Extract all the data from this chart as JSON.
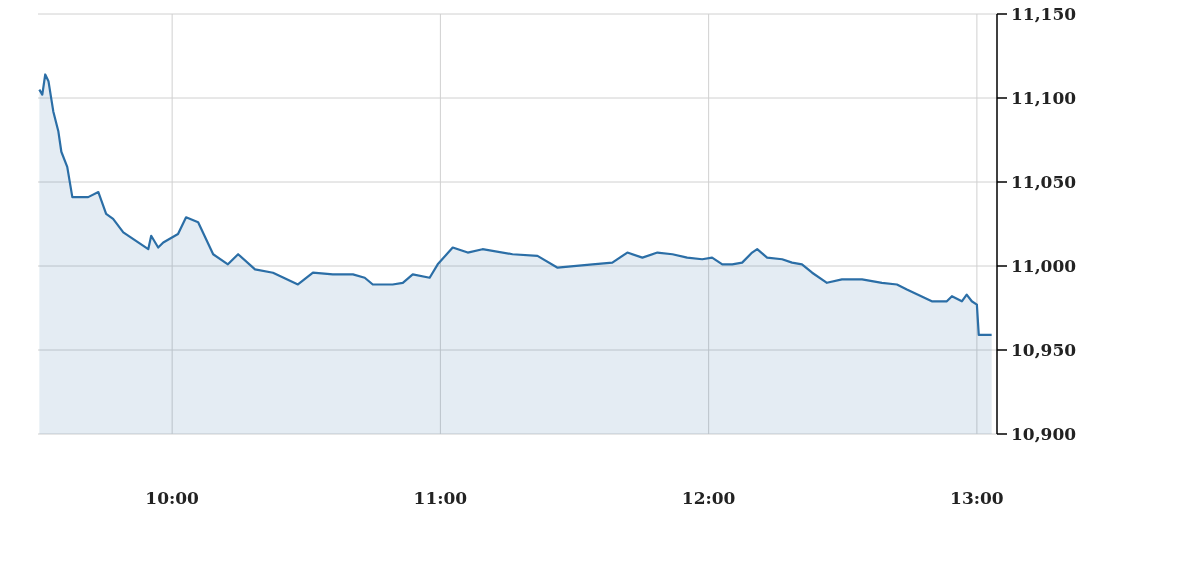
{
  "chart_data": {
    "type": "area",
    "x": [
      9.505,
      9.516,
      9.527,
      9.539,
      9.557,
      9.576,
      9.587,
      9.609,
      9.628,
      9.65,
      9.687,
      9.725,
      9.754,
      9.78,
      9.818,
      9.911,
      9.922,
      9.948,
      9.967,
      10.022,
      10.052,
      10.097,
      10.153,
      10.208,
      10.246,
      10.309,
      10.376,
      10.469,
      10.525,
      10.599,
      10.674,
      10.718,
      10.748,
      10.822,
      10.86,
      10.897,
      10.96,
      10.99,
      11.046,
      11.102,
      11.157,
      11.269,
      11.362,
      11.437,
      11.567,
      11.641,
      11.697,
      11.753,
      11.809,
      11.865,
      11.92,
      11.976,
      12.013,
      12.051,
      12.088,
      12.125,
      12.162,
      12.181,
      12.218,
      12.274,
      12.311,
      12.348,
      12.386,
      12.441,
      12.497,
      12.572,
      12.646,
      12.702,
      12.739,
      12.832,
      12.888,
      12.907,
      12.944,
      12.962,
      12.981,
      13.0,
      13.007,
      13.055
    ],
    "series": [
      {
        "color": "#2b6ea6",
        "values": [
          11105,
          11102,
          11114,
          11110,
          11092,
          11080,
          11068,
          11059,
          11041,
          11041,
          11041,
          11044,
          11031,
          11028,
          11020,
          11010,
          11018,
          11011,
          11014,
          11019,
          11029,
          11026,
          11007,
          11001,
          11007,
          10998,
          10996,
          10989,
          10996,
          10995,
          10995,
          10993,
          10989,
          10989,
          10990,
          10995,
          10993,
          11001,
          11011,
          11008,
          11010,
          11007,
          11006,
          10999,
          11001,
          11002,
          11008,
          11005,
          11008,
          11007,
          11005,
          11004,
          11005,
          11001,
          11001,
          11002,
          11008,
          11010,
          11005,
          11004,
          11002,
          11001,
          10996,
          10990,
          10992,
          10992,
          10990,
          10989,
          10986,
          10979,
          10979,
          10982,
          10979,
          10983,
          10979,
          10977,
          10959,
          10959
        ]
      }
    ],
    "xlim": [
      9.5,
      13.075
    ],
    "xticks": [
      {
        "value": 10,
        "label": "10:00"
      },
      {
        "value": 11,
        "label": "11:00"
      },
      {
        "value": 12,
        "label": "12:00"
      },
      {
        "value": 13,
        "label": "13:00"
      }
    ],
    "ylim": [
      10900,
      11150
    ],
    "yticks": [
      {
        "value": 10900,
        "label": "10,900"
      },
      {
        "value": 10950,
        "label": "10,950"
      },
      {
        "value": 11000,
        "label": "11,000"
      },
      {
        "value": 11050,
        "label": "11,050"
      },
      {
        "value": 11100,
        "label": "11,100"
      },
      {
        "value": 11150,
        "label": "11,150"
      }
    ],
    "grid": true
  }
}
